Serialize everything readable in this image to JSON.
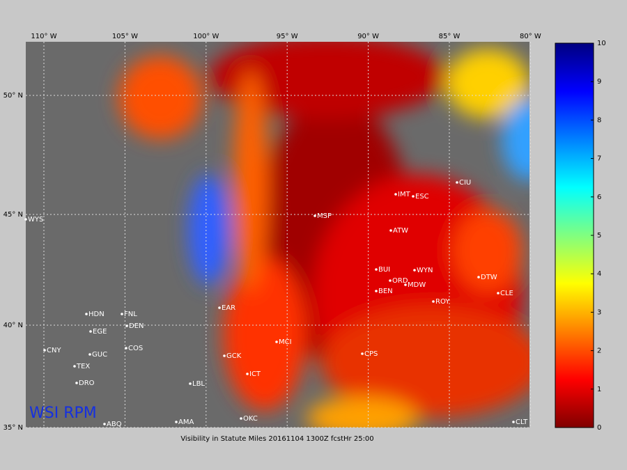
{
  "map": {
    "caption": "Visibility in Statute Miles 20161104 1300Z fcstHr 25:00",
    "brand": "WSI RPM",
    "lon_ticks": [
      {
        "value": -110,
        "label": "110° W"
      },
      {
        "value": -105,
        "label": "105° W"
      },
      {
        "value": -100,
        "label": "100° W"
      },
      {
        "value": -95,
        "label": "95° W"
      },
      {
        "value": -90,
        "label": "90° W"
      },
      {
        "value": -85,
        "label": "85° W"
      },
      {
        "value": -80,
        "label": "80° W"
      }
    ],
    "lat_ticks": [
      {
        "value": 50,
        "label": "50° N"
      },
      {
        "value": 45,
        "label": "45° N"
      },
      {
        "value": 40,
        "label": "40° N"
      },
      {
        "value": 35,
        "label": "35° N"
      }
    ],
    "stations": [
      "WYS",
      "HDN",
      "FNL",
      "EGE",
      "DEN",
      "CNY",
      "GUC",
      "COS",
      "TEX",
      "DRO",
      "EAR",
      "LBL",
      "GCK",
      "ICT",
      "MCI",
      "ABQ",
      "AMA",
      "OKC",
      "MSP",
      "IMT",
      "ESC",
      "CIU",
      "ATW",
      "BUI",
      "WYN",
      "ORD",
      "MDW",
      "BEN",
      "ROY",
      "DTW",
      "CLE",
      "CPS",
      "CLT"
    ]
  },
  "colorbar": {
    "lim": [
      0,
      10
    ],
    "ticks": [
      0,
      1,
      2,
      3,
      4,
      5,
      6,
      7,
      8,
      9,
      10
    ],
    "colors": [
      "#800000",
      "#ff0000",
      "#ff8000",
      "#ffff00",
      "#80ff80",
      "#00ffff",
      "#0080ff",
      "#0000ff",
      "#000080"
    ]
  }
}
